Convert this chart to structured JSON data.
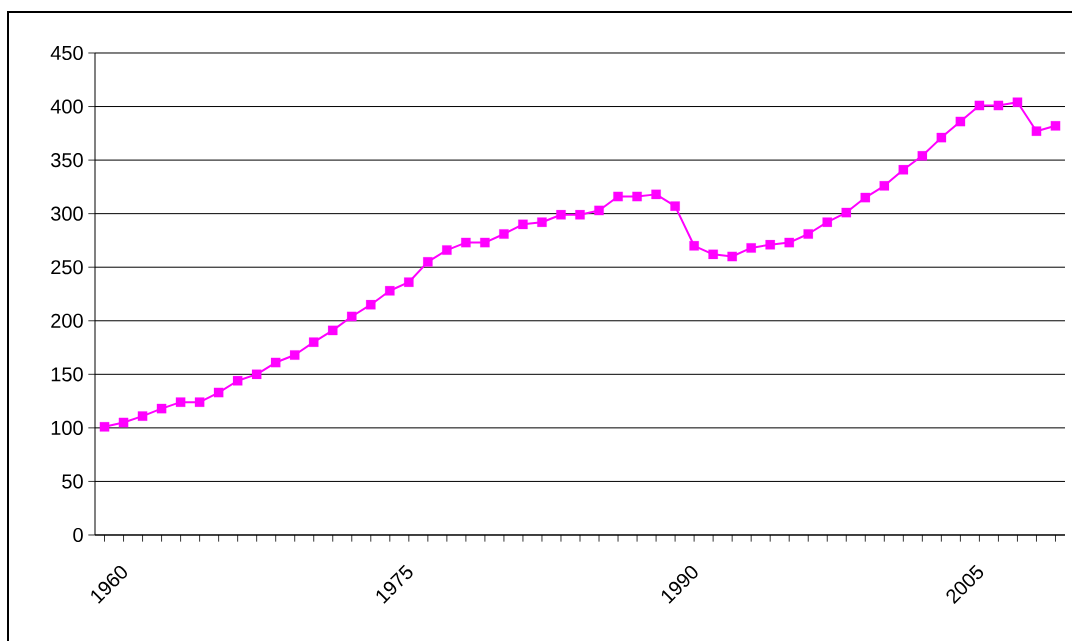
{
  "chart_data": {
    "type": "line",
    "categories": [
      "1960",
      null,
      null,
      null,
      null,
      null,
      null,
      null,
      null,
      null,
      null,
      null,
      null,
      null,
      null,
      "1975",
      null,
      null,
      null,
      null,
      null,
      null,
      null,
      null,
      null,
      null,
      null,
      null,
      null,
      null,
      "1990",
      null,
      null,
      null,
      null,
      null,
      null,
      null,
      null,
      null,
      null,
      null,
      null,
      null,
      null,
      "2005",
      null,
      null,
      null,
      null,
      null
    ],
    "values": [
      101,
      105,
      111,
      118,
      124,
      124,
      133,
      144,
      150,
      161,
      168,
      180,
      191,
      204,
      215,
      228,
      236,
      255,
      266,
      273,
      273,
      281,
      290,
      292,
      299,
      299,
      303,
      316,
      316,
      318,
      307,
      270,
      262,
      260,
      268,
      271,
      273,
      281,
      292,
      301,
      315,
      326,
      341,
      354,
      371,
      386,
      401,
      401,
      404,
      377,
      382
    ],
    "color": "#ff00ff",
    "ylim": [
      0,
      450
    ],
    "yticks": [
      0,
      50,
      100,
      150,
      200,
      250,
      300,
      350,
      400,
      450
    ],
    "grid": "y",
    "marker": "square",
    "line_style": "solid"
  }
}
